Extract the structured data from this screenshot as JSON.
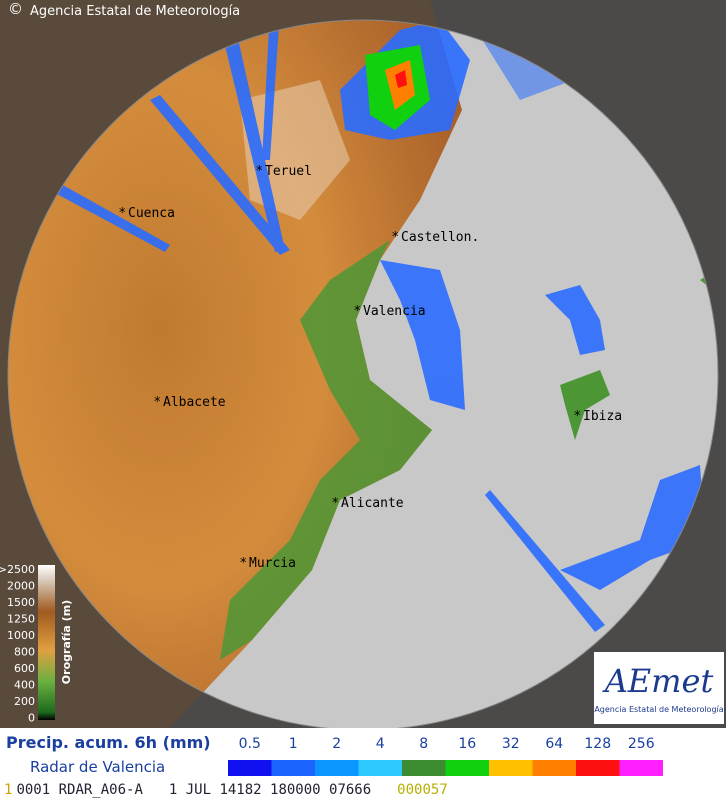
{
  "header": {
    "copyright": "©",
    "agency": "Agencia Estatal de Meteorología"
  },
  "map": {
    "cities": [
      "Teruel",
      "Cuenca",
      "Castellon.",
      "Valencia",
      "Albacete",
      "Ibiza",
      "Alicante",
      "Murcia"
    ]
  },
  "orography": {
    "title": "Orografía (m)",
    "ticks": [
      ">2500",
      2000,
      1500,
      1250,
      1000,
      800,
      600,
      400,
      200,
      0
    ]
  },
  "legend": {
    "title": "Precip. acum. 6h (mm)",
    "subtitle": "Radar de Valencia",
    "values": [
      0.5,
      1,
      2,
      4,
      8,
      16,
      32,
      64,
      128,
      256
    ],
    "colors": [
      "#1010f0",
      "#1c64ff",
      "#0a96ff",
      "#2cc8ff",
      "#3c8c32",
      "#10d010",
      "#ffc000",
      "#ff8000",
      "#ff1010",
      "#ff20ff"
    ]
  },
  "logo": {
    "name": "AEmet",
    "caption": "Agencia Estatal de Meteorología"
  },
  "footer": {
    "fields": [
      "1",
      "0001 RDAR_A06-A",
      "1 JUL 14182 180000 07666",
      "000057"
    ]
  }
}
